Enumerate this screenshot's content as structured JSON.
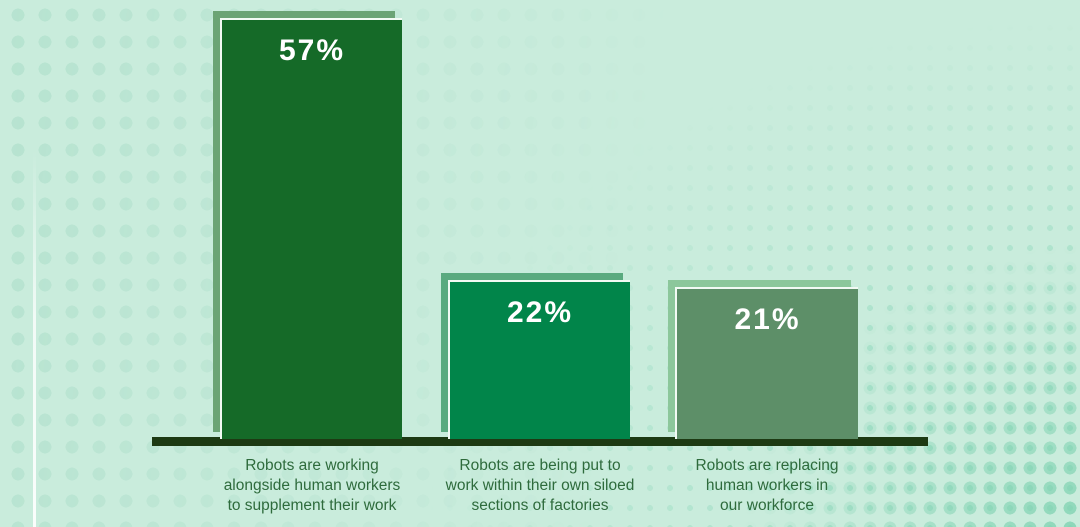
{
  "chart_data": {
    "type": "bar",
    "categories": [
      "Robots are working alongside human workers to supplement their work",
      "Robots are being put to work within their own siloed sections of factories",
      "Robots are replacing human workers in our workforce"
    ],
    "values": [
      57,
      22,
      21
    ],
    "value_labels": [
      "57%",
      "22%",
      "21%"
    ],
    "title": "",
    "xlabel": "",
    "ylabel": "",
    "ylim": [
      0,
      60
    ],
    "grid": false,
    "legend": false,
    "orientation": "vertical"
  },
  "bars": [
    {
      "value_label": "57%",
      "label_lines": [
        "Robots are working",
        "alongside human workers",
        "to supplement their work"
      ],
      "fill": "#156a28",
      "shadow": "#6ba475"
    },
    {
      "value_label": "22%",
      "label_lines": [
        "Robots are being put to",
        "work within their own siloed",
        "sections of factories"
      ],
      "fill": "#01854a",
      "shadow": "#5aaa7f"
    },
    {
      "value_label": "21%",
      "label_lines": [
        "Robots are replacing",
        "human workers in",
        "our workforce"
      ],
      "fill": "#5d8f68",
      "shadow": "#8cc79b"
    }
  ],
  "colors": {
    "background": "#c9ecdc",
    "soft_dots": "#b5e2cf",
    "teal_dots": "#8fd9bc",
    "axis_line": "#1d3a13",
    "category_text": "#2e6b3c",
    "value_text": "#ffffff",
    "bar_edge_line": "#f2faf4"
  }
}
